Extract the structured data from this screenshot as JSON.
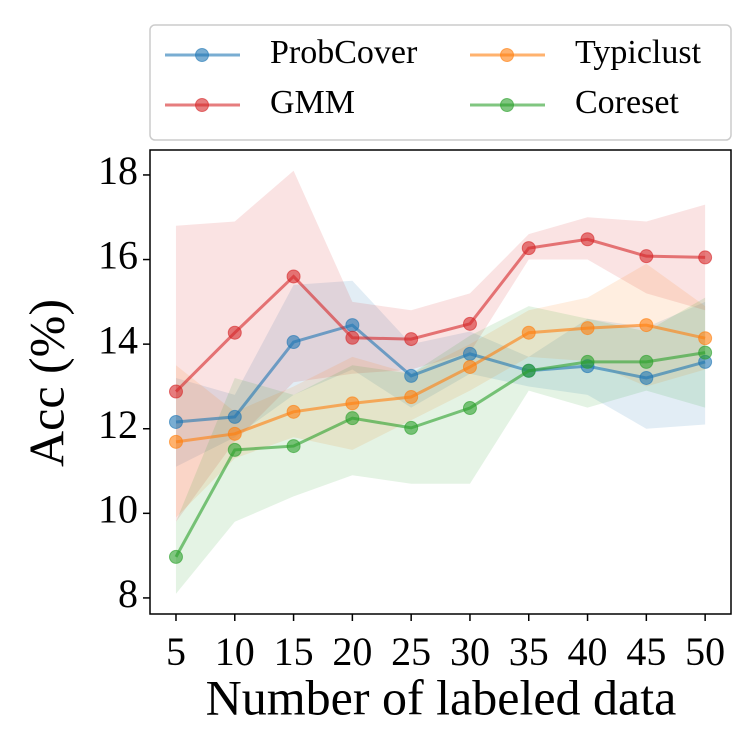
{
  "chart_data": {
    "type": "line",
    "x": [
      5,
      10,
      15,
      20,
      25,
      30,
      35,
      40,
      45,
      50
    ],
    "xlim": [
      2.79,
      52.2
    ],
    "xticks": [
      5,
      10,
      15,
      20,
      25,
      30,
      35,
      40,
      45,
      50
    ],
    "ylim": [
      7.62,
      18.59
    ],
    "yticks": [
      8,
      10,
      12,
      14,
      16,
      18
    ],
    "x_label": "Number of labeled data",
    "y_label": "Acc (%)",
    "legend": "top",
    "legend_columns": 2,
    "series": [
      {
        "name": "ProbCover",
        "color": "#1f77b4",
        "values": [
          12.16,
          12.28,
          14.05,
          14.45,
          13.25,
          13.77,
          13.37,
          13.48,
          13.2,
          13.58
        ],
        "lower": [
          11.1,
          11.8,
          12.8,
          13.4,
          12.5,
          13.3,
          13.0,
          12.8,
          12.0,
          12.1
        ],
        "upper": [
          13.2,
          12.8,
          15.4,
          15.5,
          14.0,
          14.3,
          13.7,
          14.6,
          14.4,
          15.0
        ]
      },
      {
        "name": "GMM",
        "color": "#d62728",
        "values": [
          12.88,
          14.27,
          15.6,
          14.15,
          14.12,
          14.48,
          16.27,
          16.48,
          16.08,
          16.05
        ],
        "lower": [
          9.8,
          11.7,
          13.1,
          13.3,
          13.4,
          13.8,
          16.0,
          16.0,
          15.2,
          14.8
        ],
        "upper": [
          16.8,
          16.9,
          18.1,
          15.0,
          14.8,
          15.2,
          16.6,
          17.0,
          16.9,
          17.3
        ]
      },
      {
        "name": "Typiclust",
        "color": "#ff7f0e",
        "values": [
          11.69,
          11.88,
          12.4,
          12.6,
          12.75,
          13.46,
          14.27,
          14.38,
          14.45,
          14.14
        ],
        "lower": [
          9.9,
          11.3,
          11.8,
          11.5,
          12.2,
          12.9,
          13.7,
          13.6,
          13.0,
          13.4
        ],
        "upper": [
          13.5,
          12.4,
          13.0,
          13.7,
          13.3,
          14.0,
          14.8,
          15.1,
          15.9,
          14.9
        ]
      },
      {
        "name": "Coreset",
        "color": "#2ca02c",
        "values": [
          8.97,
          11.5,
          11.59,
          12.25,
          12.02,
          12.49,
          13.37,
          13.58,
          13.58,
          13.8
        ],
        "lower": [
          8.1,
          9.8,
          10.4,
          10.9,
          10.7,
          10.7,
          12.9,
          12.5,
          12.9,
          12.5
        ],
        "upper": [
          9.8,
          13.2,
          12.8,
          13.5,
          13.3,
          14.2,
          14.9,
          14.6,
          14.3,
          15.1
        ]
      }
    ]
  }
}
